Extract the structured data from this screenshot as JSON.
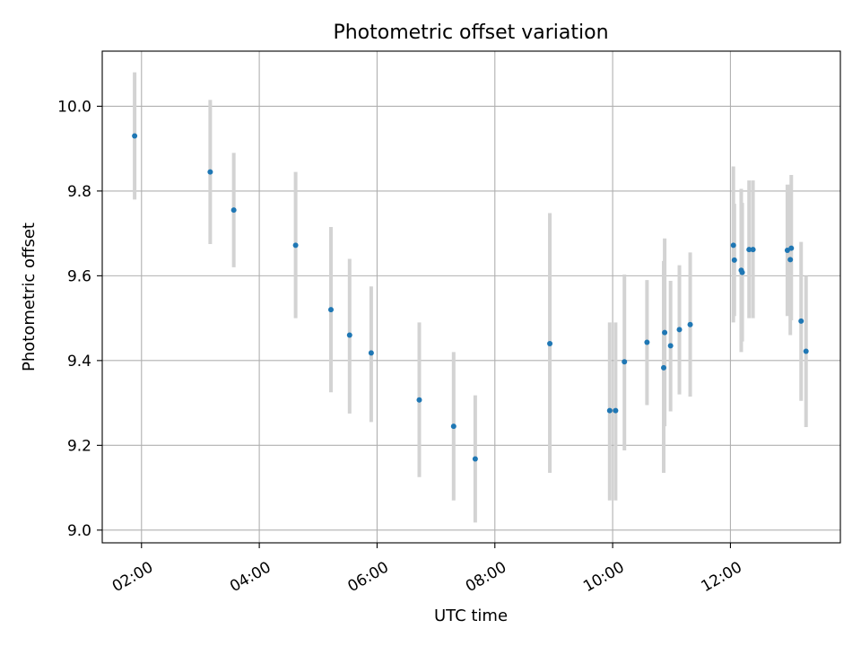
{
  "chart_data": {
    "type": "scatter",
    "title": "Photometric offset variation",
    "xlabel": "UTC time",
    "ylabel": "Photometric offset",
    "x_axis": {
      "kind": "time",
      "range": [
        "01:20",
        "13:52"
      ],
      "ticks": [
        "02:00",
        "04:00",
        "06:00",
        "08:00",
        "10:00",
        "12:00"
      ]
    },
    "ylim": [
      8.97,
      10.13
    ],
    "y_ticks": [
      9.0,
      9.2,
      9.4,
      9.6,
      9.8,
      10.0
    ],
    "grid": true,
    "marker_color": "#1f77b4",
    "errorbar_color": "#d3d3d3",
    "series": [
      {
        "points": [
          {
            "x": "01:53",
            "y": 9.93,
            "lo": 9.78,
            "hi": 10.08
          },
          {
            "x": "03:10",
            "y": 9.845,
            "lo": 9.675,
            "hi": 10.015
          },
          {
            "x": "03:34",
            "y": 9.755,
            "lo": 9.62,
            "hi": 9.89
          },
          {
            "x": "04:37",
            "y": 9.672,
            "lo": 9.5,
            "hi": 9.845
          },
          {
            "x": "05:13",
            "y": 9.52,
            "lo": 9.325,
            "hi": 9.715
          },
          {
            "x": "05:32",
            "y": 9.46,
            "lo": 9.275,
            "hi": 9.64
          },
          {
            "x": "05:54",
            "y": 9.418,
            "lo": 9.255,
            "hi": 9.575
          },
          {
            "x": "06:43",
            "y": 9.307,
            "lo": 9.125,
            "hi": 9.49
          },
          {
            "x": "07:18",
            "y": 9.245,
            "lo": 9.07,
            "hi": 9.42
          },
          {
            "x": "07:40",
            "y": 9.168,
            "lo": 9.018,
            "hi": 9.318
          },
          {
            "x": "08:56",
            "y": 9.44,
            "lo": 9.135,
            "hi": 9.748
          },
          {
            "x": "09:57",
            "y": 9.282,
            "lo": 9.07,
            "hi": 9.49
          },
          {
            "x": "10:03",
            "y": 9.282,
            "lo": 9.07,
            "hi": 9.49
          },
          {
            "x": "10:12",
            "y": 9.397,
            "lo": 9.188,
            "hi": 9.603
          },
          {
            "x": "10:35",
            "y": 9.443,
            "lo": 9.295,
            "hi": 9.59
          },
          {
            "x": "10:52",
            "y": 9.383,
            "lo": 9.135,
            "hi": 9.635
          },
          {
            "x": "10:53",
            "y": 9.466,
            "lo": 9.245,
            "hi": 9.688
          },
          {
            "x": "10:59",
            "y": 9.435,
            "lo": 9.28,
            "hi": 9.588
          },
          {
            "x": "11:08",
            "y": 9.473,
            "lo": 9.32,
            "hi": 9.625
          },
          {
            "x": "11:19",
            "y": 9.485,
            "lo": 9.315,
            "hi": 9.655
          },
          {
            "x": "12:03",
            "y": 9.672,
            "lo": 9.49,
            "hi": 9.858
          },
          {
            "x": "12:04",
            "y": 9.637,
            "lo": 9.505,
            "hi": 9.77
          },
          {
            "x": "12:11",
            "y": 9.613,
            "lo": 9.42,
            "hi": 9.805
          },
          {
            "x": "12:12",
            "y": 9.608,
            "lo": 9.445,
            "hi": 9.772
          },
          {
            "x": "12:19",
            "y": 9.662,
            "lo": 9.5,
            "hi": 9.825
          },
          {
            "x": "12:23",
            "y": 9.662,
            "lo": 9.5,
            "hi": 9.825
          },
          {
            "x": "12:58",
            "y": 9.66,
            "lo": 9.505,
            "hi": 9.815
          },
          {
            "x": "13:01",
            "y": 9.638,
            "lo": 9.46,
            "hi": 9.815
          },
          {
            "x": "13:02",
            "y": 9.665,
            "lo": 9.495,
            "hi": 9.838
          },
          {
            "x": "13:12",
            "y": 9.493,
            "lo": 9.305,
            "hi": 9.68
          },
          {
            "x": "13:17",
            "y": 9.422,
            "lo": 9.243,
            "hi": 9.6
          }
        ]
      }
    ]
  }
}
